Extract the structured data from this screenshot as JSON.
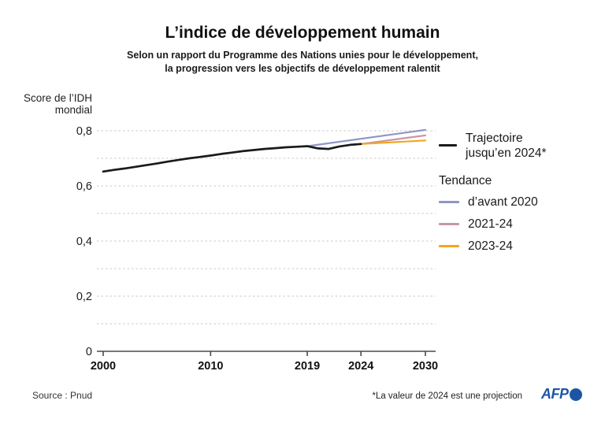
{
  "header": {
    "title": "L’indice de développement humain",
    "subtitle_line1": "Selon un rapport du Programme des Nations unies pour le développement,",
    "subtitle_line2": "la progression vers les objectifs de développement ralentit"
  },
  "y_axis_unit": "Score de l’IDH\nmondial",
  "chart_data": {
    "type": "line",
    "title": "L’indice de développement humain",
    "xlabel": "",
    "ylabel": "Score de l’IDH mondial",
    "x_range": [
      2000,
      2030
    ],
    "ylim": [
      0,
      0.88
    ],
    "grid": "horizontal-dashed",
    "gridlines": [
      0.1,
      0.2,
      0.3,
      0.4,
      0.5,
      0.6,
      0.7,
      0.8
    ],
    "x_ticks": [
      2000,
      2010,
      2019,
      2024,
      2030
    ],
    "y_ticks": [
      {
        "value": 0,
        "label": "0"
      },
      {
        "value": 0.2,
        "label": "0,2"
      },
      {
        "value": 0.4,
        "label": "0,4"
      },
      {
        "value": 0.6,
        "label": "0,6"
      },
      {
        "value": 0.8,
        "label": "0,8"
      }
    ],
    "legend_position": "right",
    "series": [
      {
        "name": "Trajectoire jusqu’en 2024*",
        "color": "#1a1a1a",
        "points": [
          [
            2000,
            0.652
          ],
          [
            2001,
            0.658
          ],
          [
            2002,
            0.663
          ],
          [
            2003,
            0.669
          ],
          [
            2004,
            0.675
          ],
          [
            2005,
            0.681
          ],
          [
            2006,
            0.688
          ],
          [
            2007,
            0.694
          ],
          [
            2008,
            0.7
          ],
          [
            2009,
            0.705
          ],
          [
            2010,
            0.71
          ],
          [
            2011,
            0.716
          ],
          [
            2012,
            0.721
          ],
          [
            2013,
            0.726
          ],
          [
            2014,
            0.73
          ],
          [
            2015,
            0.734
          ],
          [
            2016,
            0.737
          ],
          [
            2017,
            0.74
          ],
          [
            2018,
            0.742
          ],
          [
            2019,
            0.744
          ],
          [
            2020,
            0.736
          ],
          [
            2021,
            0.734
          ],
          [
            2022,
            0.743
          ],
          [
            2023,
            0.749
          ],
          [
            2024,
            0.752
          ]
        ]
      },
      {
        "name": "Tendance d’avant 2020",
        "color": "#8e96c6",
        "points": [
          [
            2019,
            0.744
          ],
          [
            2030,
            0.803
          ]
        ]
      },
      {
        "name": "Tendance 2021-24",
        "color": "#c997a4",
        "points": [
          [
            2024,
            0.752
          ],
          [
            2030,
            0.783
          ]
        ]
      },
      {
        "name": "Tendance 2023-24",
        "color": "#f2a71f",
        "points": [
          [
            2024,
            0.752
          ],
          [
            2030,
            0.765
          ]
        ]
      }
    ]
  },
  "legend": {
    "trajectory_label": "Trajectoire\njusqu’en 2024*",
    "trajectory_color": "#1a1a1a",
    "tendance_header": "Tendance",
    "items": [
      {
        "label": "d’avant 2020",
        "color": "#8e96c6"
      },
      {
        "label": "2021-24",
        "color": "#c997a4"
      },
      {
        "label": "2023-24",
        "color": "#f2a71f"
      }
    ]
  },
  "footer": {
    "source": "Source : Pnud",
    "note": "*La valeur de 2024 est une projection",
    "logo_text": "AFP",
    "logo_color": "#1d55a5"
  }
}
